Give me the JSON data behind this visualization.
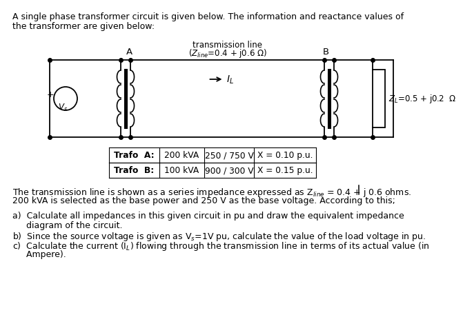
{
  "title_line1": "A single phase transformer circuit is given below. The information and reactance values of",
  "title_line2": "the transformer are given below:",
  "transmission_label": "transmission line",
  "transmission_z": "(Z$_{line}$=0.4 + j0.6 Ω)",
  "node_A": "A",
  "node_B": "B",
  "IL_label": "$I_L$",
  "ZL_label": "$Z_L$=0.5 + j0.2  Ω",
  "Vs_label": "$V_s$",
  "plus_label": "+",
  "table_row1": [
    "Trafo  A:",
    "200 kVA",
    "250 / 750 V",
    "X = 0.10 p.u."
  ],
  "table_row2": [
    "Trafo  B:",
    "100 kVA",
    "900 / 300 V",
    "X = 0.15 p.u."
  ],
  "para1_line1a": "The transmission line is shown as a series impedance expressed as Z",
  "para1_line1b": "line",
  "para1_line1c": " = 0.4 + j 0.6 ohms.",
  "para1_line2": "200 kVA is selected as the base power and 250 V as the base voltage. According to this;",
  "item_a1": "a)  Calculate all impedances in this given circuit in pu and draw the equivalent impedance",
  "item_a2": "     diagram of the circuit.",
  "item_b": "b)  Since the source voltage is given as V",
  "item_b2": "s",
  "item_b3": "=1V pu, calculate the value of the load voltage in pu.",
  "item_c1": "c)  Calculate the current (I",
  "item_c2": "L",
  "item_c3": ") flowing through the transmission line in terms of its actual value (in",
  "item_c4": "     Ampere).",
  "bg_color": "#ffffff",
  "text_color": "#000000",
  "line_color": "#000000",
  "font_size": 9.0,
  "circ_font": 8.5
}
